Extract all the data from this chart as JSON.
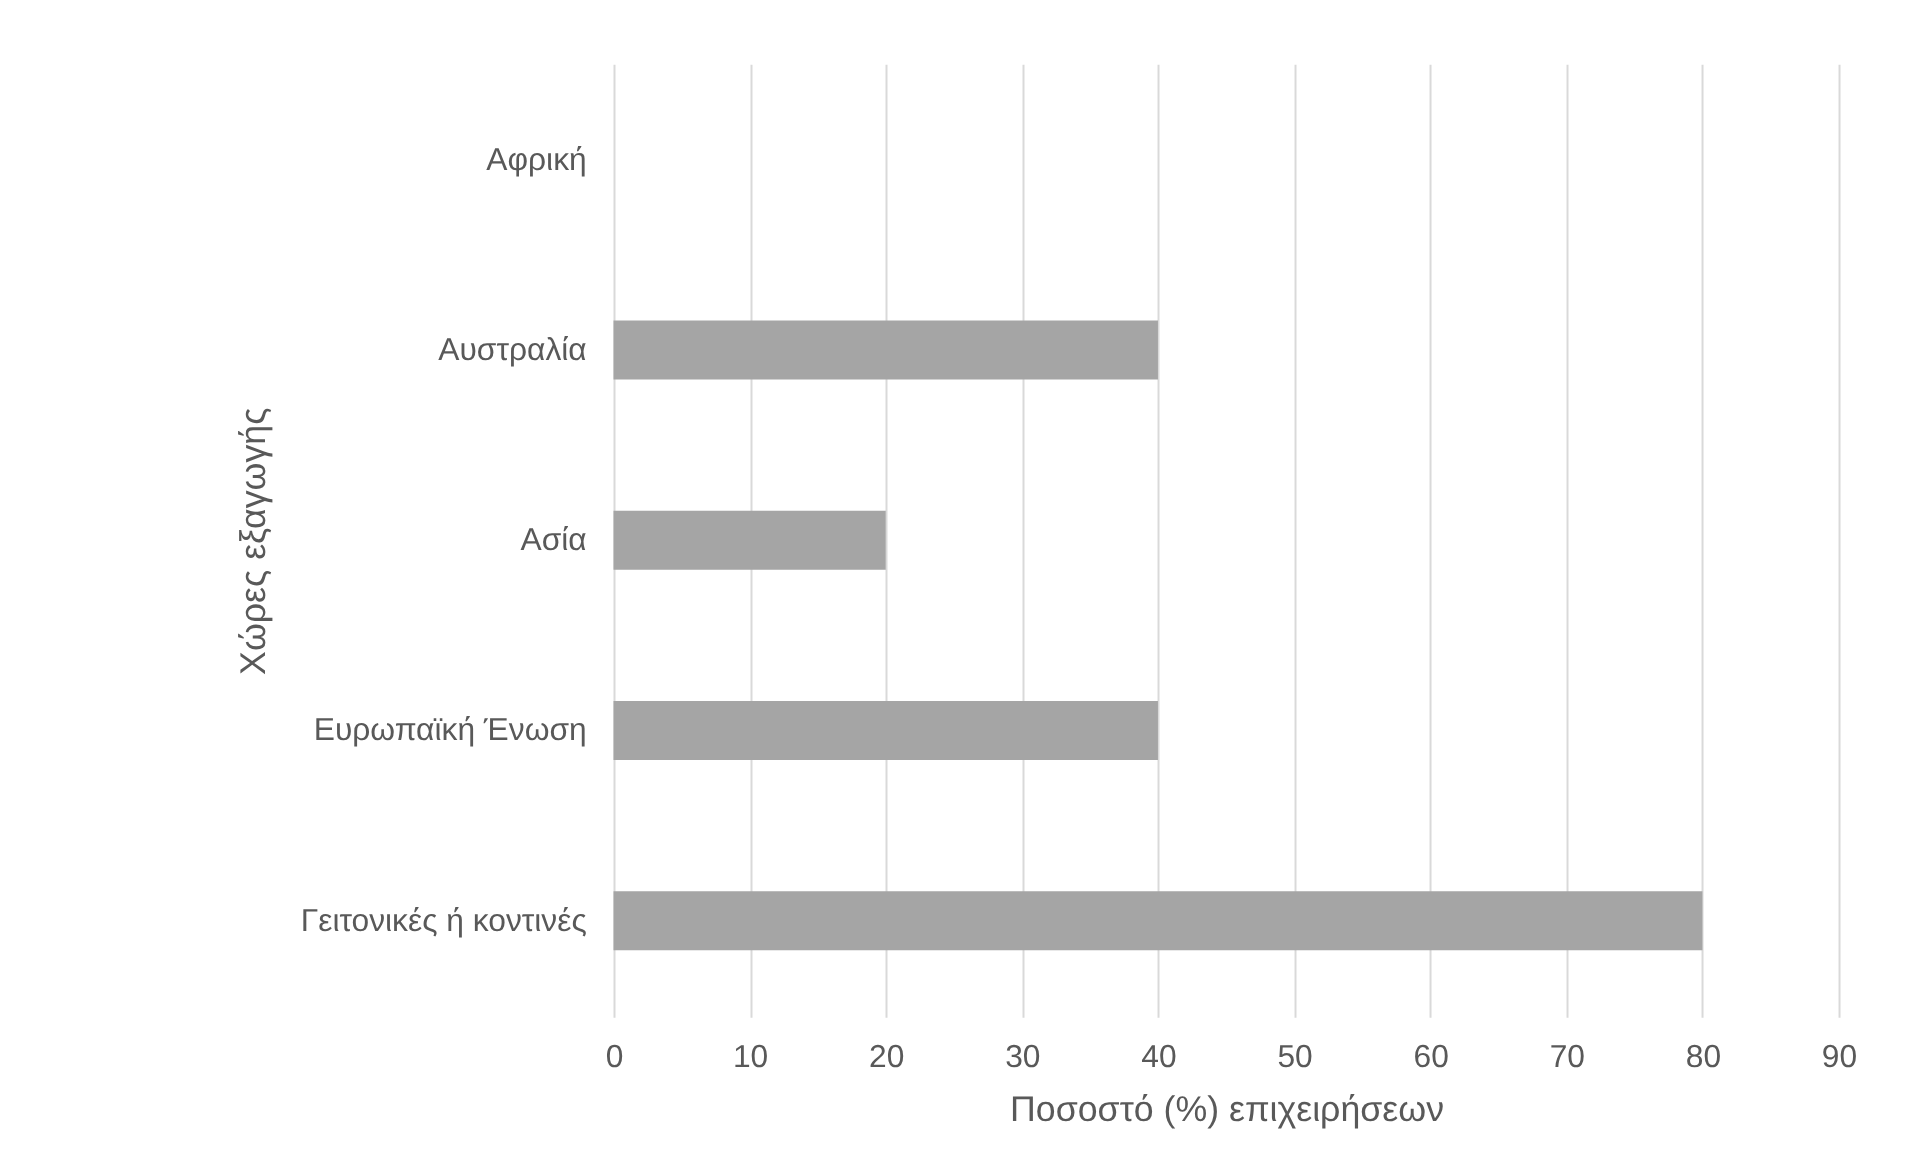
{
  "chart_data": {
    "type": "bar",
    "orientation": "horizontal",
    "categories": [
      "Αφρική",
      "Αυστραλία",
      "Ασία",
      "Ευρωπαϊκή Ένωση",
      "Γειτονικές ή κοντινές"
    ],
    "values": [
      0,
      40,
      20,
      40,
      80
    ],
    "color": "#a5a5a5",
    "xlabel": "Ποσοστό (%) επιχειρήσεων",
    "ylabel": "Χώρες εξαγωγής",
    "xlim": [
      0,
      90
    ],
    "xticks": [
      0,
      10,
      20,
      30,
      40,
      50,
      60,
      70,
      80,
      90
    ],
    "grid": "x"
  }
}
